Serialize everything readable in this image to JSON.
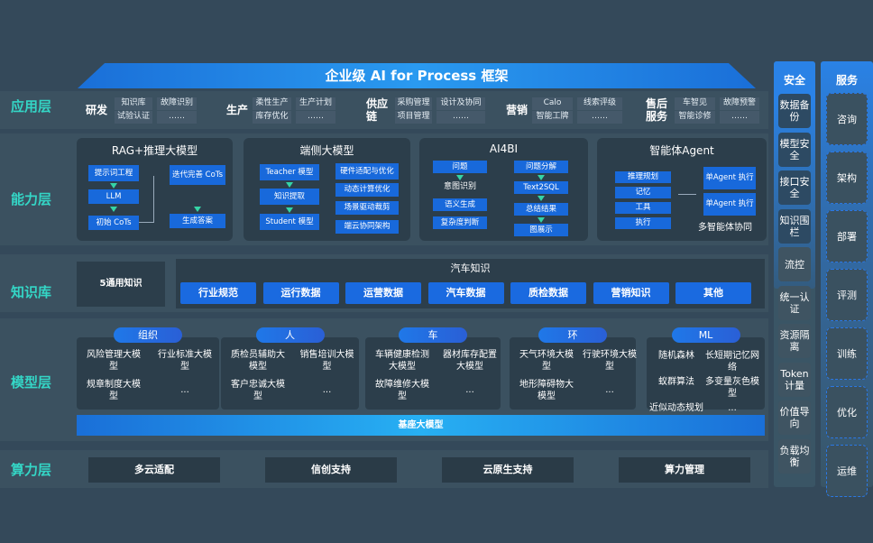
{
  "title": "企业级 AI for Process 框架",
  "layers": {
    "app": "应用层",
    "ability": "能力层",
    "knowledge": "知识库",
    "model": "模型层",
    "compute": "算力层"
  },
  "app": [
    {
      "name": "研发",
      "items": [
        "知识库",
        "故障识别",
        "试验认证",
        "……"
      ]
    },
    {
      "name": "生产",
      "items": [
        "柔性生产",
        "生产计划",
        "库存优化",
        "……"
      ]
    },
    {
      "name": "供应链",
      "items": [
        "采购管理",
        "设计及协同",
        "项目管理",
        "……"
      ]
    },
    {
      "name": "营销",
      "items": [
        "Calo",
        "线索评级",
        "智能工牌",
        "……"
      ]
    },
    {
      "name": "售后服务",
      "items": [
        "车智见",
        "故障预警",
        "智能诊修",
        "……"
      ]
    }
  ],
  "ability": {
    "rag": {
      "title": "RAG+推理大模型",
      "items": [
        "提示词工程",
        "LLM",
        "初始 CoTs",
        "迭代完善 CoTs",
        "生成答案"
      ]
    },
    "edge": {
      "title": "端侧大模型",
      "left": [
        "Teacher 模型",
        "知识提取",
        "Student 模型"
      ],
      "right": [
        "硬件适配与优化",
        "动态计算优化",
        "场景驱动裁剪",
        "端云协同架构"
      ]
    },
    "ai4bi": {
      "title": "AI4BI",
      "left": [
        "问题",
        "意图识别",
        "语义生成",
        "复杂度判断"
      ],
      "right": [
        "问题分解",
        "Text2SQL",
        "总结结果",
        "图展示"
      ]
    },
    "agent": {
      "title": "智能体Agent",
      "left": [
        "推理规划",
        "记忆",
        "工具",
        "执行"
      ],
      "right": [
        "单Agent 执行",
        "单Agent 执行"
      ],
      "footer": "多智能体协同"
    }
  },
  "knowledge": {
    "general": "5通用知识",
    "auto_title": "汽车知识",
    "items": [
      "行业规范",
      "运行数据",
      "运营数据",
      "汽车数据",
      "质检数据",
      "营销知识",
      "其他"
    ]
  },
  "model": {
    "groups": [
      {
        "name": "组织",
        "items": [
          "风险管理大模型",
          "行业标准大模型",
          "规章制度大模型",
          "..."
        ]
      },
      {
        "name": "人",
        "items": [
          "质检员辅助大模型",
          "销售培训大模型",
          "客户忠诚大模型",
          "..."
        ]
      },
      {
        "name": "车",
        "items": [
          "车辆健康检测大模型",
          "器材库存配置大模型",
          "故障维修大模型",
          "..."
        ]
      },
      {
        "name": "环",
        "items": [
          "天气环境大模型",
          "行驶环境大模型",
          "地形障碍物大模型",
          "..."
        ]
      },
      {
        "name": "ML",
        "items": [
          "随机森林",
          "长短期记忆网络",
          "蚁群算法",
          "多变量灰色模型",
          "近似动态规划",
          "..."
        ]
      }
    ],
    "base": "基座大模型"
  },
  "compute": [
    "多云适配",
    "信创支持",
    "云原生支持",
    "算力管理"
  ],
  "security": {
    "title": "安全",
    "items": [
      "数据备份",
      "模型安全",
      "接口安全",
      "知识围栏",
      "流控",
      "统一认证",
      "资源隔离",
      "Token计量",
      "价值导向",
      "负载均衡"
    ]
  },
  "service": {
    "title": "服务",
    "items": [
      "咨询",
      "架构",
      "部署",
      "评测",
      "训练",
      "优化",
      "运维"
    ]
  }
}
